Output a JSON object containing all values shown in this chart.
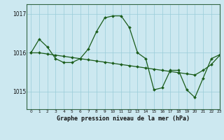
{
  "title": "Graphe pression niveau de la mer (hPa)",
  "bg_color": "#cce8f0",
  "grid_color": "#99ccd8",
  "line_color": "#1a5c1a",
  "xlim": [
    -0.5,
    23
  ],
  "ylim": [
    1014.55,
    1017.25
  ],
  "yticks": [
    1015,
    1016,
    1017
  ],
  "xticks": [
    0,
    1,
    2,
    3,
    4,
    5,
    6,
    7,
    8,
    9,
    10,
    11,
    12,
    13,
    14,
    15,
    16,
    17,
    18,
    19,
    20,
    21,
    22,
    23
  ],
  "jagged_y": [
    1016.0,
    1016.35,
    1016.15,
    1015.85,
    1015.75,
    1015.75,
    1015.85,
    1016.1,
    1016.55,
    1016.9,
    1016.95,
    1016.95,
    1016.65,
    1016.0,
    1015.85,
    1015.05,
    1015.1,
    1015.55,
    1015.55,
    1015.05,
    1014.85,
    1015.35,
    1015.85,
    1015.95
  ],
  "trend_y": [
    1016.0,
    1016.0,
    1015.97,
    1015.94,
    1015.91,
    1015.88,
    1015.85,
    1015.82,
    1015.79,
    1015.76,
    1015.73,
    1015.7,
    1015.67,
    1015.64,
    1015.61,
    1015.58,
    1015.55,
    1015.52,
    1015.49,
    1015.46,
    1015.43,
    1015.55,
    1015.7,
    1015.93
  ],
  "marker_size": 2.0,
  "linewidth": 0.9
}
